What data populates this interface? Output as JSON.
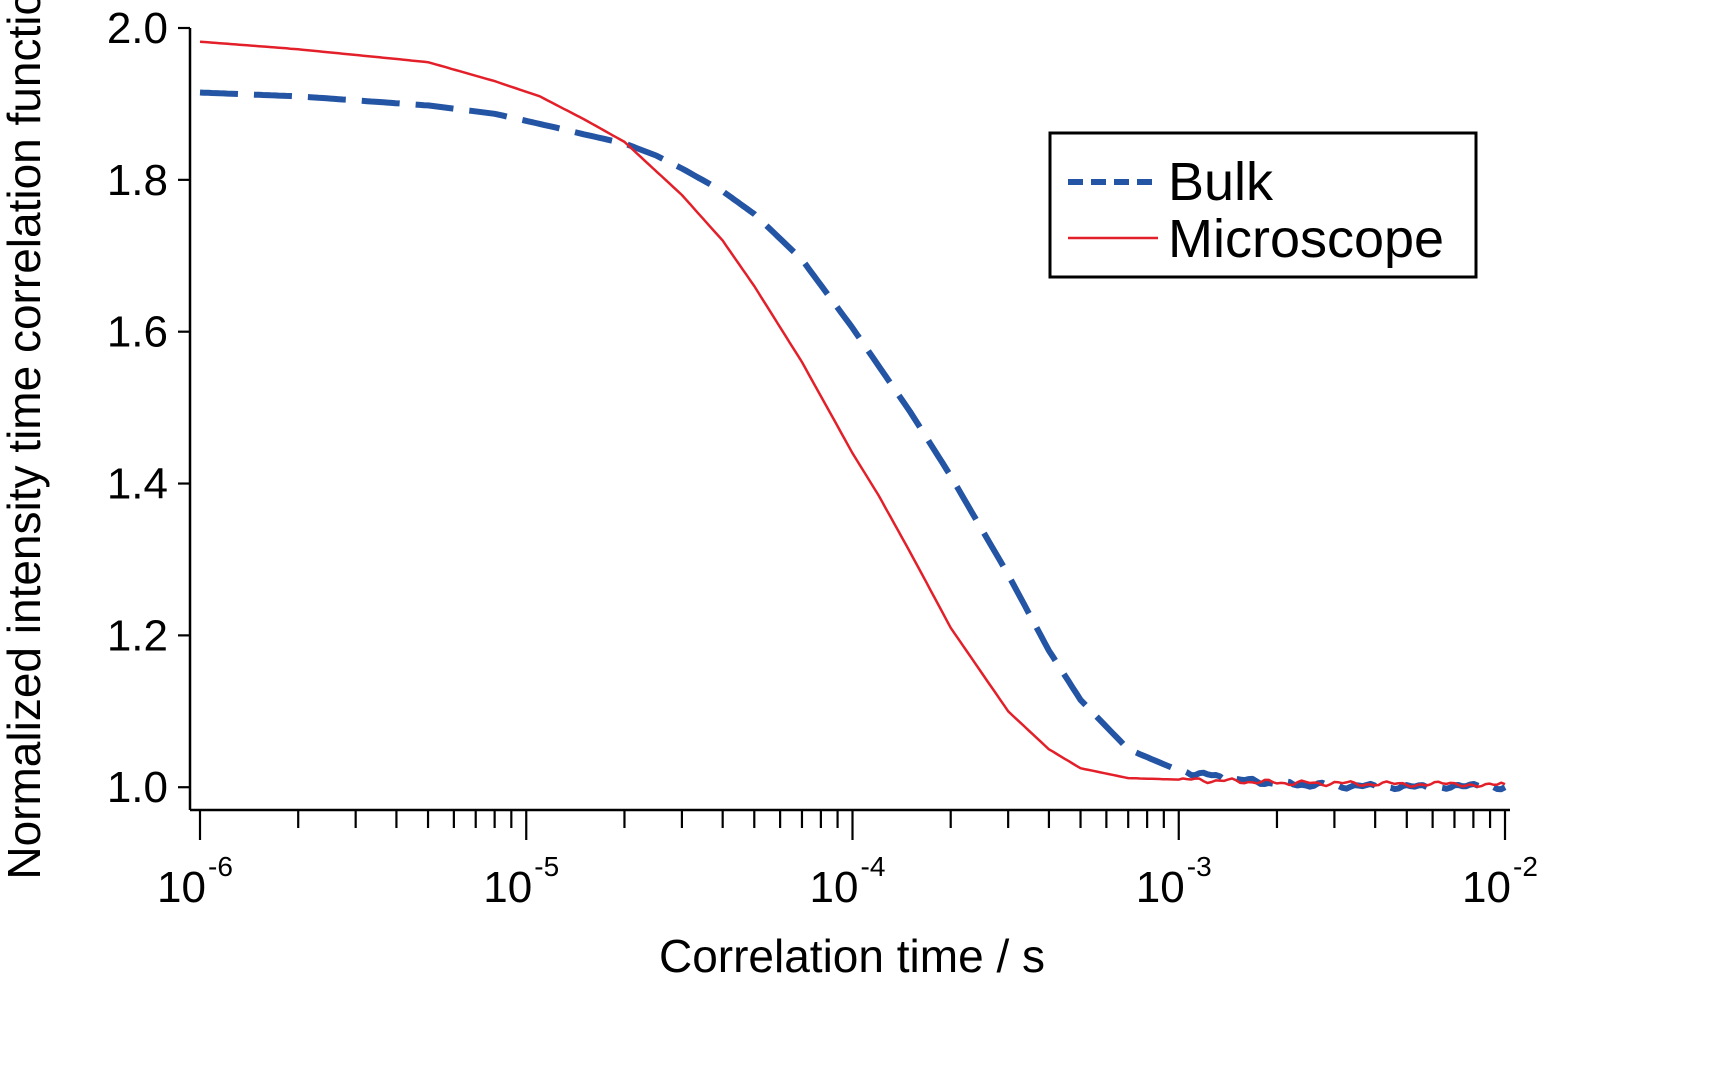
{
  "chart_data": {
    "type": "line",
    "title": "",
    "xlabel": "Correlation time / s",
    "ylabel": "Normalized intensity time correlation function",
    "x_scale": "log",
    "xlim": [
      1e-06,
      0.01
    ],
    "ylim": [
      0.97,
      2.0
    ],
    "x_ticks": [
      {
        "base": "10",
        "exp": "-6",
        "value": 1e-06
      },
      {
        "base": "10",
        "exp": "-5",
        "value": 1e-05
      },
      {
        "base": "10",
        "exp": "-4",
        "value": 0.0001
      },
      {
        "base": "10",
        "exp": "-3",
        "value": 0.001
      },
      {
        "base": "10",
        "exp": "-2",
        "value": 0.01
      }
    ],
    "y_ticks": [
      {
        "label": "1.0",
        "value": 1.0
      },
      {
        "label": "1.2",
        "value": 1.2
      },
      {
        "label": "1.4",
        "value": 1.4
      },
      {
        "label": "1.6",
        "value": 1.6
      },
      {
        "label": "1.8",
        "value": 1.8
      },
      {
        "label": "2.0",
        "value": 2.0
      }
    ],
    "legend_position": "top-right",
    "series": [
      {
        "name": "Bulk",
        "color": "#2454a4",
        "style": "dashed",
        "x": [
          1e-06,
          2e-06,
          5e-06,
          8e-06,
          1.2e-05,
          1.5e-05,
          2e-05,
          2.5e-05,
          3e-05,
          4e-05,
          5e-05,
          7e-05,
          0.0001,
          0.00015,
          0.0002,
          0.0003,
          0.0004,
          0.0005,
          0.0007,
          0.001,
          0.0015,
          0.002,
          0.003,
          0.005,
          0.007,
          0.01
        ],
        "values": [
          1.915,
          1.91,
          1.898,
          1.887,
          1.87,
          1.86,
          1.848,
          1.832,
          1.815,
          1.785,
          1.755,
          1.695,
          1.605,
          1.495,
          1.41,
          1.28,
          1.18,
          1.115,
          1.05,
          1.022,
          1.01,
          1.005,
          1.002,
          1.0,
          1.001,
          1.0
        ]
      },
      {
        "name": "Microscope",
        "color": "#e3202a",
        "style": "solid",
        "x": [
          1e-06,
          2e-06,
          5e-06,
          8e-06,
          1.1e-05,
          1.5e-05,
          2e-05,
          3e-05,
          4e-05,
          5e-05,
          7e-05,
          0.0001,
          0.00012,
          0.00015,
          0.0002,
          0.0003,
          0.0004,
          0.0005,
          0.0007,
          0.001,
          0.0015,
          0.002,
          0.003,
          0.005,
          0.007,
          0.01
        ],
        "values": [
          1.982,
          1.972,
          1.955,
          1.93,
          1.91,
          1.88,
          1.85,
          1.78,
          1.72,
          1.66,
          1.56,
          1.44,
          1.385,
          1.31,
          1.21,
          1.1,
          1.05,
          1.025,
          1.012,
          1.01,
          1.008,
          1.006,
          1.005,
          1.004,
          1.004,
          1.004
        ]
      }
    ]
  }
}
